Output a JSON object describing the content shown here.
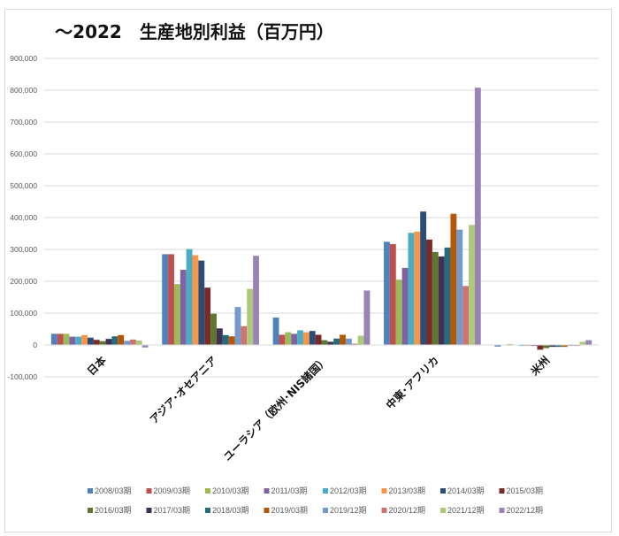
{
  "chart_data": {
    "type": "bar",
    "title": "～2022　生産地別利益（百万円）",
    "categories": [
      "日本",
      "アジア･オセアニア",
      "ユーラシア（欧州･NIS諸国）",
      "中東･アフリカ",
      "米州"
    ],
    "ylim": [
      -100000,
      900000
    ],
    "yticks": [
      -100000,
      0,
      100000,
      200000,
      300000,
      400000,
      500000,
      600000,
      700000,
      800000,
      900000
    ],
    "ytick_labels": [
      "-100,000",
      "0",
      "100,000",
      "200,000",
      "300,000",
      "400,000",
      "500,000",
      "600,000",
      "700,000",
      "800,000",
      "900,000"
    ],
    "grid": true,
    "legend_position": "bottom",
    "series": [
      {
        "name": "2008/03期",
        "color": "#4f81bd",
        "values": [
          35000,
          285000,
          86000,
          324000,
          -5000
        ]
      },
      {
        "name": "2009/03期",
        "color": "#c0504d",
        "values": [
          35000,
          285000,
          32000,
          317000,
          0
        ]
      },
      {
        "name": "2010/03期",
        "color": "#9bbb59",
        "values": [
          35000,
          191000,
          40000,
          205000,
          3000
        ]
      },
      {
        "name": "2011/03期",
        "color": "#8064a2",
        "values": [
          26000,
          236000,
          35000,
          242000,
          0
        ]
      },
      {
        "name": "2012/03期",
        "color": "#4bacc6",
        "values": [
          26000,
          301000,
          46000,
          352000,
          -3000
        ]
      },
      {
        "name": "2013/03期",
        "color": "#f79646",
        "values": [
          31000,
          282000,
          40000,
          356000,
          -3000
        ]
      },
      {
        "name": "2014/03期",
        "color": "#2c4d75",
        "values": [
          23000,
          265000,
          44000,
          419000,
          -3000
        ]
      },
      {
        "name": "2015/03期",
        "color": "#772c2a",
        "values": [
          16000,
          180000,
          32000,
          331000,
          -15000
        ]
      },
      {
        "name": "2016/03期",
        "color": "#5f7530",
        "values": [
          12000,
          98000,
          15000,
          292000,
          -10000
        ]
      },
      {
        "name": "2017/03期",
        "color": "#403152",
        "values": [
          19000,
          52000,
          10000,
          278000,
          -6000
        ]
      },
      {
        "name": "2018/03期",
        "color": "#276a7c",
        "values": [
          27000,
          31000,
          20000,
          306000,
          -6000
        ]
      },
      {
        "name": "2019/03期",
        "color": "#b65708",
        "values": [
          31000,
          27000,
          32000,
          412000,
          -6000
        ]
      },
      {
        "name": "2019/12期",
        "color": "#729aca",
        "values": [
          13000,
          119000,
          20000,
          362000,
          -3000
        ]
      },
      {
        "name": "2020/12期",
        "color": "#cd7371",
        "values": [
          17000,
          59000,
          4000,
          185000,
          -3000
        ]
      },
      {
        "name": "2021/12期",
        "color": "#afc97a",
        "values": [
          14000,
          176000,
          29000,
          377000,
          10000
        ]
      },
      {
        "name": "2022/12期",
        "color": "#9983b5",
        "values": [
          -8000,
          280000,
          171000,
          808000,
          15000
        ]
      }
    ]
  }
}
